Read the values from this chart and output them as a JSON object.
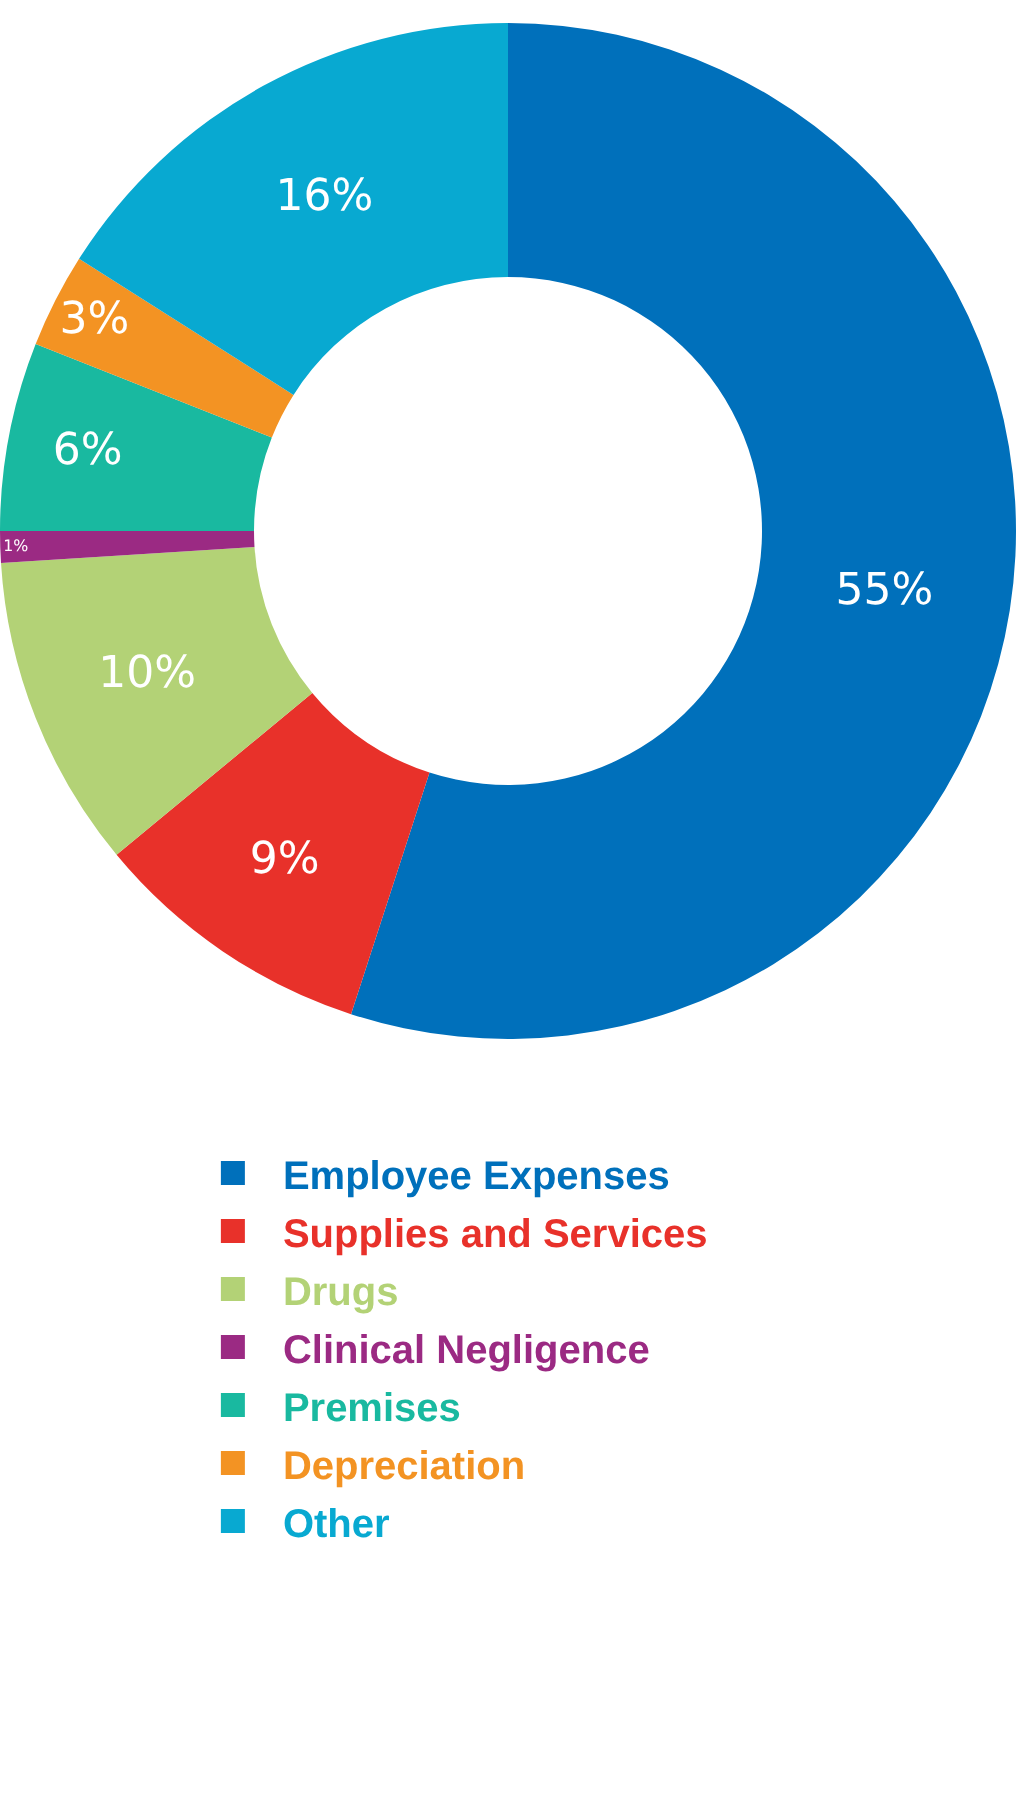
{
  "chart_data": {
    "type": "donut",
    "categories": [
      "Employee Expenses",
      "Supplies and Services",
      "Drugs",
      "Clinical Negligence",
      "Premises",
      "Depreciation",
      "Other"
    ],
    "values": [
      55,
      9,
      10,
      1,
      6,
      3,
      16
    ],
    "colors": [
      "#0070bb",
      "#e8312a",
      "#b3d276",
      "#9b2a83",
      "#19b9a0",
      "#f39323",
      "#08a9d1"
    ],
    "value_labels": [
      "55%",
      "9%",
      "10%",
      "1%",
      "6%",
      "3%",
      "16%"
    ],
    "legend": "bottom"
  }
}
